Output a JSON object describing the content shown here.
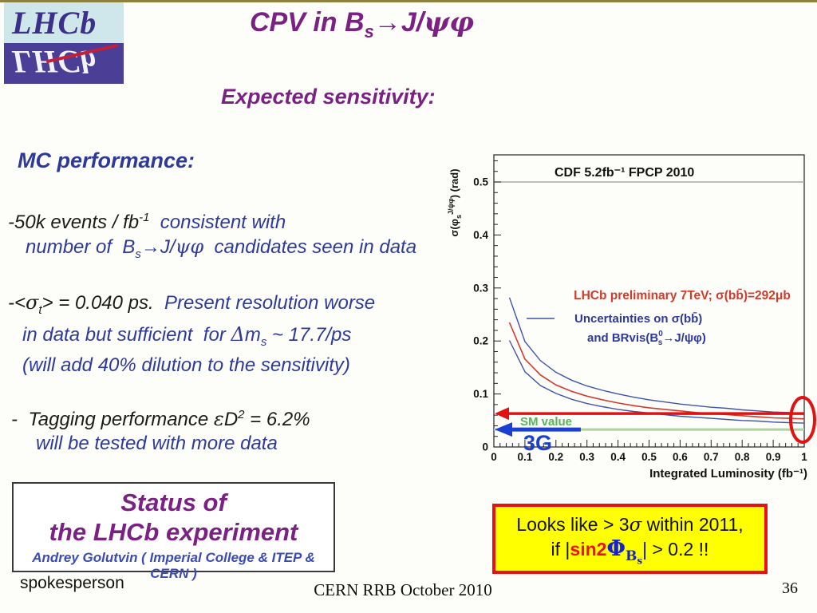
{
  "logo": {
    "text": "LHCb"
  },
  "header": {
    "title_pre": "CPV in B",
    "title_sub": "s",
    "title_arrow": "→",
    "title_mid": "J/",
    "title_greek": "ψφ",
    "subtitle": "Expected sensitivity:",
    "title_color": "#7b2184"
  },
  "mc": {
    "heading": "MC performance:",
    "lines": [
      {
        "gap": 42,
        "ind": 0,
        "seg": [
          {
            "t": "-50k events / fb",
            "c": "k"
          },
          {
            "t": "-1",
            "c": "k",
            "sup": 1
          },
          {
            "t": "  consistent with",
            "c": "b"
          }
        ]
      },
      {
        "gap": 0,
        "ind": 22,
        "seg": [
          {
            "t": "number of  B",
            "c": "b"
          },
          {
            "t": "s",
            "c": "b",
            "sub": 1
          },
          {
            "t": "→",
            "c": "b"
          },
          {
            "t": "J/",
            "c": "b"
          },
          {
            "t": "ψφ",
            "c": "b",
            "g": 1
          },
          {
            "t": "  candidates seen in data",
            "c": "b"
          }
        ]
      },
      {
        "gap": 30,
        "ind": 0,
        "seg": [
          {
            "t": "-<",
            "c": "k"
          },
          {
            "t": "σ",
            "c": "k",
            "g": 1
          },
          {
            "t": "t",
            "c": "k",
            "sub": 1
          },
          {
            "t": "> = 0.040 ps.",
            "c": "k"
          },
          {
            "t": "  Present resolution worse",
            "c": "b"
          }
        ]
      },
      {
        "gap": 0,
        "ind": 18,
        "seg": [
          {
            "t": "in data but sufficient  for ",
            "c": "b"
          },
          {
            "t": "Δ",
            "c": "b",
            "g": 1
          },
          {
            "t": "m",
            "c": "b"
          },
          {
            "t": "s",
            "c": "b",
            "sub": 1
          },
          {
            "t": " ~ 17.7/ps",
            "c": "b"
          }
        ]
      },
      {
        "gap": 0,
        "ind": 18,
        "seg": [
          {
            "t": "(will add 40% dilution to the sensitivity)",
            "c": "b"
          }
        ]
      },
      {
        "gap": 32,
        "ind": 4,
        "seg": [
          {
            "t": "-  Tagging performance ",
            "c": "k"
          },
          {
            "t": "ε",
            "c": "k",
            "g": 1
          },
          {
            "t": "D",
            "c": "k"
          },
          {
            "t": "2",
            "c": "k",
            "sup": 1
          },
          {
            "t": " = 6.2%",
            "c": "k"
          }
        ]
      },
      {
        "gap": 0,
        "ind": 35,
        "seg": [
          {
            "t": "will be tested with more data",
            "c": "b"
          }
        ]
      }
    ]
  },
  "chart_data": {
    "type": "line",
    "xlabel": "Integrated Luminosity (fb⁻¹)",
    "ylabel_pre": "σ(φ",
    "ylabel_sub": "s",
    "ylabel_sup": "J/ψφ",
    "ylabel_post": ")  (rad)",
    "xlim": [
      0,
      1
    ],
    "ylim": [
      0,
      0.551
    ],
    "x_ticks": [
      "0",
      "0.1",
      "0.2",
      "0.3",
      "0.4",
      "0.5",
      "0.6",
      "0.7",
      "0.8",
      "0.9",
      "1"
    ],
    "y_ticks": [
      "0",
      "0.1",
      "0.2",
      "0.3",
      "0.4",
      "0.5"
    ],
    "x": [
      0.05,
      0.1,
      0.15,
      0.2,
      0.25,
      0.3,
      0.35,
      0.4,
      0.45,
      0.5,
      0.55,
      0.6,
      0.65,
      0.7,
      0.75,
      0.8,
      0.85,
      0.9,
      0.95,
      1.0
    ],
    "series": [
      {
        "name": "upper uncertainty band",
        "color": "#4053a8",
        "width": 1.4,
        "values": [
          0.282,
          0.199,
          0.163,
          0.141,
          0.126,
          0.115,
          0.107,
          0.1,
          0.094,
          0.089,
          0.085,
          0.081,
          0.078,
          0.075,
          0.073,
          0.07,
          0.068,
          0.066,
          0.065,
          0.063
        ]
      },
      {
        "name": "lower uncertainty band",
        "color": "#4053a8",
        "width": 1.4,
        "values": [
          0.201,
          0.142,
          0.116,
          0.101,
          0.09,
          0.082,
          0.076,
          0.071,
          0.067,
          0.064,
          0.061,
          0.058,
          0.056,
          0.054,
          0.052,
          0.05,
          0.049,
          0.047,
          0.046,
          0.045
        ]
      },
      {
        "name": "LHCb expected sensitivity (central)",
        "color": "#d43a2a",
        "width": 1.6,
        "values": [
          0.235,
          0.166,
          0.136,
          0.117,
          0.105,
          0.096,
          0.089,
          0.083,
          0.078,
          0.074,
          0.071,
          0.068,
          0.065,
          0.063,
          0.061,
          0.059,
          0.057,
          0.055,
          0.054,
          0.053
        ]
      }
    ],
    "cdf_label": "CDF 5.2fb⁻¹ FPCP 2010",
    "cdf_y": 0.5,
    "legend_red": "LHCb preliminary 7TeV;  σ(bb̄)=292μb",
    "legend_blue1": "Uncertainties on  σ(bb̄)",
    "legend_blue2_pre": "and BRvis(B",
    "legend_blue2_sup": "0",
    "legend_blue2_sub": "s",
    "legend_blue2_post": "→J/ψφ)",
    "sm_label": "SM value",
    "sm_y": 0.033,
    "red_arrow_y": 0.063,
    "blue_arrow_y": 0.033,
    "blue_arrow_x_end": 0.28,
    "g3_label": "3G",
    "colors": {
      "central": "#d43a2a",
      "band": "#4053a8",
      "sm_line": "#a8d69c",
      "sm_text": "#57b457",
      "red": "#e31212",
      "blue_arrow": "#1b3fd0",
      "cdf_line": "#a8a8a8",
      "legend_blue": "#2e3a99"
    }
  },
  "status_box": {
    "title1": "Status of",
    "title2": "the LHCb experiment",
    "credit": "Andrey Golutvin ( Imperial College & ITEP & CERN )"
  },
  "spokesperson_label": "spokesperson",
  "conclusion": {
    "l1_pre": "Looks like > 3",
    "l1_sigma": "σ",
    "l1_post": " within 2011,",
    "l2_pre": "if |",
    "l2_red": "sin2",
    "l2_phi": "Φ",
    "l2_phi_sub": "B",
    "l2_phi_subsub": "s",
    "l2_post": "| > 0.2 !!"
  },
  "footer": {
    "center": "CERN RRB October 2010",
    "page": "36"
  }
}
